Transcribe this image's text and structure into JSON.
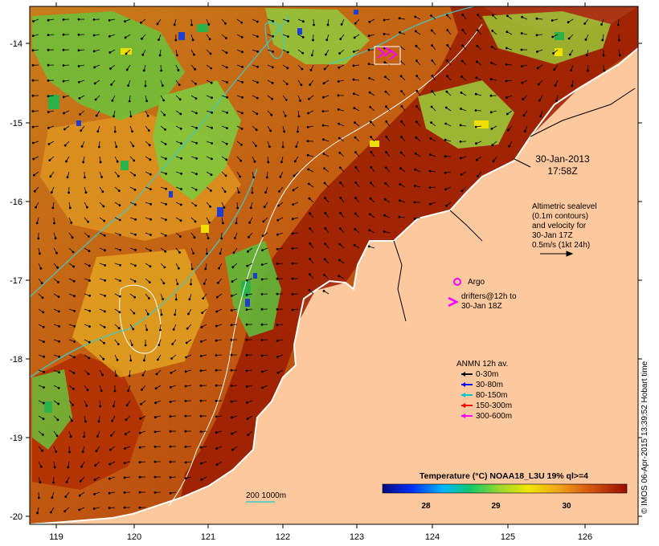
{
  "map": {
    "x_ticks": [
      "119",
      "120",
      "121",
      "122",
      "123",
      "124",
      "125",
      "126"
    ],
    "y_ticks": [
      "-14",
      "-15",
      "-16",
      "-17",
      "-18",
      "-19",
      "-20"
    ],
    "colors": {
      "land": "#fdc89d",
      "coast": "#ffffff",
      "hot": "#9b1c00",
      "warm": "#d06a10",
      "mid": "#e0a21e",
      "cool": "#8fc63c",
      "cold": "#2bb34a",
      "deep": "#1e3fd0",
      "contour": "#3ec9c8"
    }
  },
  "timestamp": {
    "date": "30-Jan-2013",
    "time": "17:58Z"
  },
  "altimetry_note": {
    "line1": "Altimetric sealevel",
    "line2": "(0.1m contours)",
    "line3": "and velocity for",
    "line4": "30-Jan 17Z",
    "line5": "0.5m/s (1kt 24h)"
  },
  "argo": {
    "marker": "o",
    "label": "Argo"
  },
  "drifters": {
    "marker": ">",
    "label": "drifters@12h to",
    "label2": "30-Jan 18Z"
  },
  "anmn_legend": {
    "title": "ANMN 12h av.",
    "items": [
      {
        "label": "0-30m",
        "color": "#000000"
      },
      {
        "label": "30-80m",
        "color": "#0000ff"
      },
      {
        "label": "80-150m",
        "color": "#00c8d0"
      },
      {
        "label": "150-300m",
        "color": "#ff0000"
      },
      {
        "label": "300-600m",
        "color": "#ff00ff"
      }
    ]
  },
  "depth_contours": {
    "label": "200  1000m"
  },
  "colorbar": {
    "title": "Temperature (°C) NOAA18_L3U 19% ql>=4",
    "ticks": [
      "28",
      "29",
      "30"
    ]
  },
  "side_label": "© IMOS 06-Apr-2015 13:39:52 Hobart time"
}
